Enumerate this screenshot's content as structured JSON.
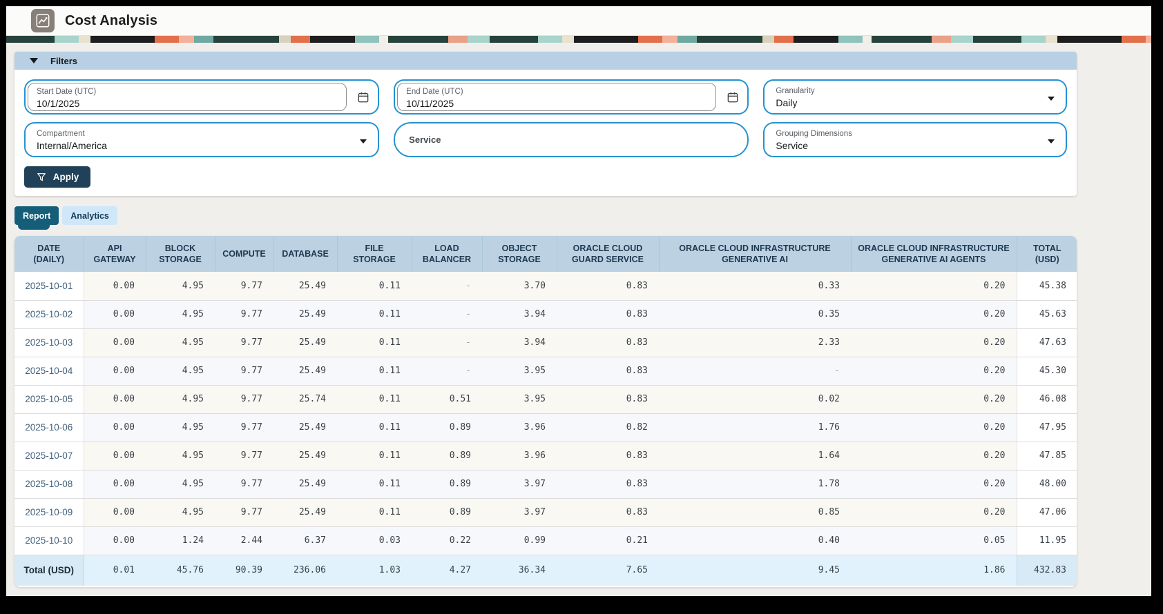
{
  "header": {
    "title": "Cost Analysis"
  },
  "colors": {
    "accent_blue": "#2492d1",
    "filters_header_bg": "#b9cfe4",
    "table_header_bg": "#bcd2e2",
    "tab_active_bg": "#145e79",
    "tab_inactive_bg": "#cfe7f8",
    "apply_bg": "#204158",
    "total_row_bg": "#e1f2fc",
    "date_link": "#42617c"
  },
  "filters": {
    "title": "Filters",
    "apply_label": "Apply",
    "start_date": {
      "label": "Start Date (UTC)",
      "value": "10/1/2025"
    },
    "end_date": {
      "label": "End Date (UTC)",
      "value": "10/11/2025"
    },
    "granularity": {
      "label": "Granularity",
      "value": "Daily"
    },
    "compartment": {
      "label": "Compartment",
      "value": "Internal/America"
    },
    "service": {
      "label": "Service",
      "value": ""
    },
    "grouping": {
      "label": "Grouping Dimensions",
      "value": "Service"
    }
  },
  "tabs": [
    {
      "label": "Report",
      "active": true
    },
    {
      "label": "Analytics",
      "active": false
    }
  ],
  "table": {
    "columns": [
      "DATE\n(DAILY)",
      "API\nGATEWAY",
      "BLOCK\nSTORAGE",
      "COMPUTE",
      "DATABASE",
      "FILE\nSTORAGE",
      "LOAD\nBALANCER",
      "OBJECT\nSTORAGE",
      "ORACLE CLOUD\nGUARD SERVICE",
      "ORACLE CLOUD INFRASTRUCTURE\nGENERATIVE AI",
      "ORACLE CLOUD INFRASTRUCTURE\nGENERATIVE AI AGENTS",
      "TOTAL\n(USD)"
    ],
    "rows": [
      {
        "date": "2025-10-01",
        "values": [
          "0.00",
          "4.95",
          "9.77",
          "25.49",
          "0.11",
          "-",
          "3.70",
          "0.83",
          "0.33",
          "0.20"
        ],
        "total": "45.38"
      },
      {
        "date": "2025-10-02",
        "values": [
          "0.00",
          "4.95",
          "9.77",
          "25.49",
          "0.11",
          "-",
          "3.94",
          "0.83",
          "0.35",
          "0.20"
        ],
        "total": "45.63"
      },
      {
        "date": "2025-10-03",
        "values": [
          "0.00",
          "4.95",
          "9.77",
          "25.49",
          "0.11",
          "-",
          "3.94",
          "0.83",
          "2.33",
          "0.20"
        ],
        "total": "47.63"
      },
      {
        "date": "2025-10-04",
        "values": [
          "0.00",
          "4.95",
          "9.77",
          "25.49",
          "0.11",
          "-",
          "3.95",
          "0.83",
          "-",
          "0.20"
        ],
        "total": "45.30"
      },
      {
        "date": "2025-10-05",
        "values": [
          "0.00",
          "4.95",
          "9.77",
          "25.74",
          "0.11",
          "0.51",
          "3.95",
          "0.83",
          "0.02",
          "0.20"
        ],
        "total": "46.08"
      },
      {
        "date": "2025-10-06",
        "values": [
          "0.00",
          "4.95",
          "9.77",
          "25.49",
          "0.11",
          "0.89",
          "3.96",
          "0.82",
          "1.76",
          "0.20"
        ],
        "total": "47.95"
      },
      {
        "date": "2025-10-07",
        "values": [
          "0.00",
          "4.95",
          "9.77",
          "25.49",
          "0.11",
          "0.89",
          "3.96",
          "0.83",
          "1.64",
          "0.20"
        ],
        "total": "47.85"
      },
      {
        "date": "2025-10-08",
        "values": [
          "0.00",
          "4.95",
          "9.77",
          "25.49",
          "0.11",
          "0.89",
          "3.97",
          "0.83",
          "1.78",
          "0.20"
        ],
        "total": "48.00"
      },
      {
        "date": "2025-10-09",
        "values": [
          "0.00",
          "4.95",
          "9.77",
          "25.49",
          "0.11",
          "0.89",
          "3.97",
          "0.83",
          "0.85",
          "0.20"
        ],
        "total": "47.06"
      },
      {
        "date": "2025-10-10",
        "values": [
          "0.00",
          "1.24",
          "2.44",
          "6.37",
          "0.03",
          "0.22",
          "0.99",
          "0.21",
          "0.40",
          "0.05"
        ],
        "total": "11.95"
      }
    ],
    "total_row": {
      "label": "Total (USD)",
      "values": [
        "0.01",
        "45.76",
        "90.39",
        "236.06",
        "1.03",
        "4.27",
        "36.34",
        "7.65",
        "9.45",
        "1.86"
      ],
      "total": "432.83"
    }
  }
}
